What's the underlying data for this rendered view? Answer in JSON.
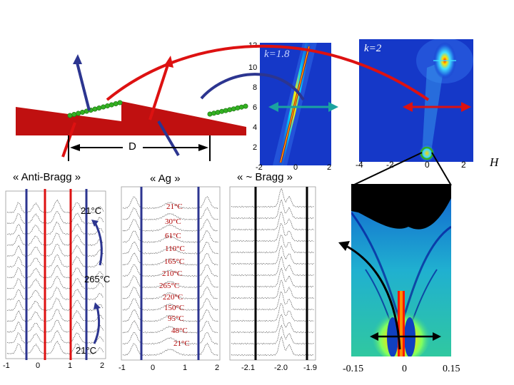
{
  "colors": {
    "red": "#dd1111",
    "navy": "#2c3590",
    "teal": "#1aa3a0",
    "green": "#33b022",
    "heat_bg": "#1030c0"
  },
  "labels": {
    "anti_bragg": "« Anti-Bragg »",
    "ag": "« Ag »",
    "bragg": "« ~ Bragg »",
    "D": "D",
    "H": "H"
  },
  "map_left": {
    "k_label": "k=1.8",
    "y_ticks": [
      "12",
      "10",
      "8",
      "6",
      "4",
      "2"
    ],
    "x_ticks": [
      "-2",
      "0",
      "2"
    ]
  },
  "map_right": {
    "k_label": "k=2",
    "x_ticks": [
      "-4",
      "-2",
      "0",
      "2"
    ]
  },
  "panel_anti": {
    "temps": [
      "21°C",
      "265°C",
      "21°C"
    ],
    "x_ticks": [
      "-1",
      "0",
      "1",
      "2"
    ]
  },
  "panel_ag": {
    "temps": [
      "21°C",
      "30°C",
      "61°C",
      "110°C",
      "165°C",
      "210°C",
      "265°C",
      "220°C",
      "150°C",
      "95°C",
      "48°C",
      "21°C"
    ],
    "x_ticks": [
      "-1",
      "0",
      "1",
      "2"
    ]
  },
  "panel_bragg": {
    "x_ticks": [
      "-2.1",
      "-2.0",
      "-1.9"
    ]
  },
  "zoom": {
    "x_ticks": [
      "-0.15",
      "0",
      "0.15"
    ]
  }
}
